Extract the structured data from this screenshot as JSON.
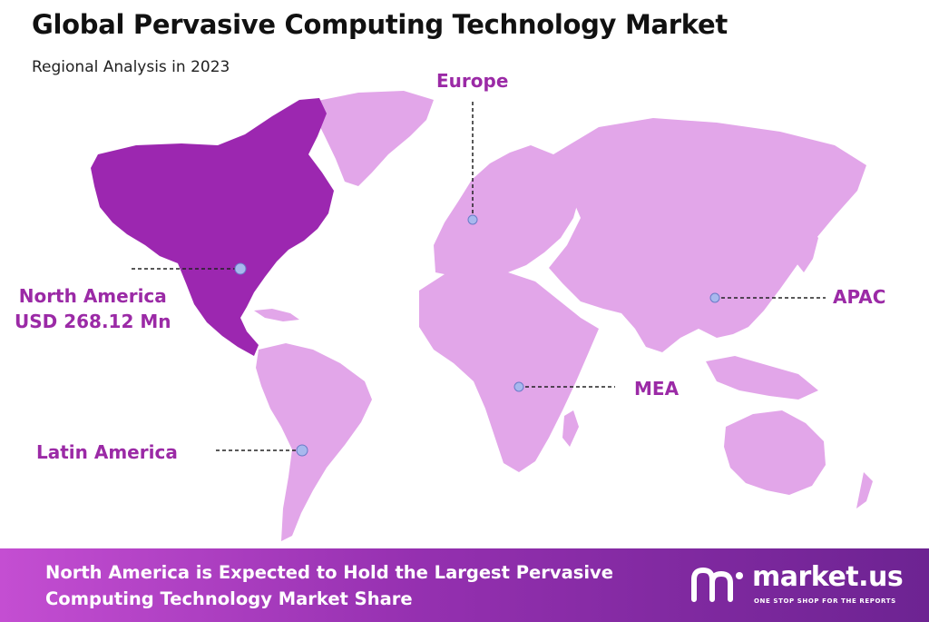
{
  "header": {
    "title": "Global Pervasive Computing Technology Market",
    "subtitle": "Regional Analysis in 2023"
  },
  "regions": {
    "europe": "Europe",
    "north_america": "North America",
    "north_america_value": "USD 268.12 Mn",
    "apac": "APAC",
    "mea": "MEA",
    "latin_america": "Latin America"
  },
  "footer": {
    "line1": "North America is Expected to Hold the Largest Pervasive",
    "line2": "Computing Technology Market Share"
  },
  "brand": {
    "name": "market.us",
    "tagline": "ONE STOP SHOP FOR THE REPORTS"
  },
  "colors": {
    "highlight_region": "#9c27b0",
    "other_regions": "#e2a6e9",
    "label": "#9b2aa6",
    "marker": "#a8b8ee"
  },
  "icons": {
    "brand_logo": "market-us-logo-icon"
  }
}
